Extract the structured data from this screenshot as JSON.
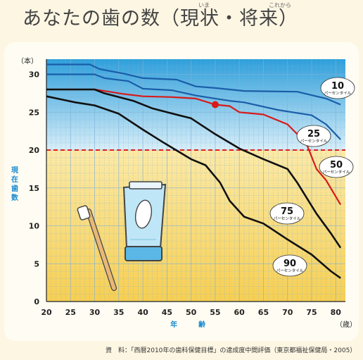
{
  "page": {
    "title": "あなたの歯の数（現状・将来）",
    "ruby_genjo": "いま",
    "ruby_shorai": "これから",
    "source": "資　料：「西暦2010年の歯科保健目標」の達成度中間評価（東京都福祉保健局・2005）"
  },
  "colors": {
    "band_blue": "#3aa8e0",
    "band_yellow": "#f7d35a",
    "grid": "#7fb0d8",
    "threshold": "#e02020",
    "p10": "#1a5ea8",
    "p25": "#1a5ea8",
    "p50": "#d81a1a",
    "p75": "#111111",
    "p90": "#111111"
  },
  "chart_data": {
    "type": "line",
    "title": "",
    "xlabel": "年　　　齢",
    "ylabel": "現在歯数",
    "x_unit": "（歳）",
    "y_unit": "（本）",
    "xlim": [
      20,
      82
    ],
    "ylim": [
      0,
      32
    ],
    "x_ticks": [
      20,
      25,
      30,
      35,
      40,
      45,
      50,
      55,
      60,
      65,
      70,
      75,
      80
    ],
    "y_ticks": [
      0,
      5,
      10,
      15,
      20,
      25,
      30
    ],
    "threshold": {
      "value": 20,
      "style": "dashed"
    },
    "marker": {
      "x": 55,
      "y": 26
    },
    "series_labels": [
      {
        "key": "p10",
        "number": "10",
        "sub": "パーセンタイル"
      },
      {
        "key": "p25",
        "number": "25",
        "sub": "パーセンタイル"
      },
      {
        "key": "p50",
        "number": "50",
        "sub": "パーセンタイル"
      },
      {
        "key": "p75",
        "number": "75",
        "sub": "パーセンタイル"
      },
      {
        "key": "p90",
        "number": "90",
        "sub": "パーセンタイル"
      }
    ],
    "series": [
      {
        "key": "p10",
        "points": [
          [
            20,
            31.3
          ],
          [
            29,
            31.3
          ],
          [
            31,
            30.7
          ],
          [
            36,
            30.1
          ],
          [
            40,
            29.5
          ],
          [
            47,
            29.3
          ],
          [
            51,
            28.4
          ],
          [
            55,
            28.2
          ],
          [
            58,
            28
          ],
          [
            61,
            27.8
          ],
          [
            72,
            27.7
          ],
          [
            78,
            26.8
          ],
          [
            81,
            26
          ]
        ]
      },
      {
        "key": "p25",
        "points": [
          [
            20,
            30
          ],
          [
            30,
            30
          ],
          [
            32,
            29.5
          ],
          [
            37,
            29.1
          ],
          [
            40,
            28.1
          ],
          [
            46,
            27.9
          ],
          [
            51,
            27.2
          ],
          [
            55,
            26.8
          ],
          [
            58,
            26.5
          ],
          [
            61,
            26.3
          ],
          [
            68,
            25.3
          ],
          [
            71,
            25
          ],
          [
            75,
            24.6
          ],
          [
            78,
            23.4
          ],
          [
            81,
            21.4
          ]
        ]
      },
      {
        "key": "p50",
        "points": [
          [
            20,
            28
          ],
          [
            30,
            28
          ],
          [
            32,
            27.8
          ],
          [
            36,
            27.4
          ],
          [
            40,
            27.1
          ],
          [
            46,
            27
          ],
          [
            51,
            26.8
          ],
          [
            55,
            26
          ],
          [
            58,
            25.8
          ],
          [
            60,
            25
          ],
          [
            65,
            24.7
          ],
          [
            70,
            23.4
          ],
          [
            72,
            22.1
          ],
          [
            74,
            20.7
          ],
          [
            76,
            17.5
          ],
          [
            78,
            16
          ],
          [
            81,
            12.8
          ]
        ]
      },
      {
        "key": "p75",
        "points": [
          [
            20,
            28
          ],
          [
            30,
            28
          ],
          [
            32,
            27.5
          ],
          [
            38,
            26.5
          ],
          [
            42,
            25.5
          ],
          [
            45,
            25
          ],
          [
            50,
            24.2
          ],
          [
            55,
            22.1
          ],
          [
            60,
            20.2
          ],
          [
            65,
            18.8
          ],
          [
            70,
            17.5
          ],
          [
            72,
            15.7
          ],
          [
            76,
            11.6
          ],
          [
            79,
            9
          ],
          [
            81,
            7.1
          ]
        ]
      },
      {
        "key": "p90",
        "points": [
          [
            20,
            27.1
          ],
          [
            23,
            26.7
          ],
          [
            26,
            26.3
          ],
          [
            30,
            25.9
          ],
          [
            35,
            24.8
          ],
          [
            40,
            22.7
          ],
          [
            44,
            21.1
          ],
          [
            50,
            18.8
          ],
          [
            53,
            18
          ],
          [
            56,
            15.7
          ],
          [
            58,
            13.3
          ],
          [
            61,
            11.2
          ],
          [
            65,
            10.3
          ],
          [
            70,
            8.2
          ],
          [
            75,
            6.2
          ],
          [
            79,
            4
          ],
          [
            81,
            3.1
          ]
        ]
      }
    ]
  }
}
